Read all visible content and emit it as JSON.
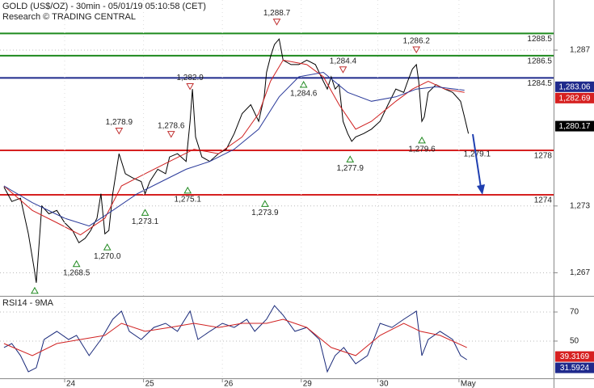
{
  "chart_data": [
    {
      "type": "line",
      "title": "GOLD (US$/OZ) - 30min - 05/01/19 05:10:58 (CET)",
      "subtitle": "Research © TRADING CENTRAL",
      "xlim": [
        0.18,
        7.2
      ],
      "ylim": [
        1265,
        1291.5
      ],
      "yticks": [
        {
          "value": 1287,
          "label": "1,287"
        },
        {
          "value": 1273,
          "label": "1,273"
        },
        {
          "value": 1267,
          "label": "1,267"
        }
      ],
      "grid": true,
      "series": [
        {
          "color": "#000000",
          "width": 1,
          "x": [
            0.23,
            0.33,
            0.44,
            0.54,
            0.61,
            0.64,
            0.67,
            0.71,
            0.8,
            0.9,
            1.0,
            1.1,
            1.18,
            1.26,
            1.33,
            1.41,
            1.46,
            1.51,
            1.56,
            1.61,
            1.69,
            1.77,
            1.87,
            1.97,
            2.02,
            2.08,
            2.18,
            2.28,
            2.33,
            2.43,
            2.54,
            2.59,
            2.62,
            2.66,
            2.74,
            2.84,
            2.95,
            3.05,
            3.15,
            3.25,
            3.36,
            3.46,
            3.53,
            3.56,
            3.61,
            3.66,
            3.72,
            3.77,
            3.87,
            3.97,
            4.07,
            4.18,
            4.28,
            4.33,
            4.38,
            4.43,
            4.48,
            4.53,
            4.59,
            4.64,
            4.69,
            4.79,
            4.89,
            5.0,
            5.1,
            5.2,
            5.3,
            5.35,
            5.41,
            5.46,
            5.49,
            5.53,
            5.56,
            5.61,
            5.71,
            5.82,
            5.92,
            6.02,
            6.07,
            6.12
          ],
          "values": [
            1274.7,
            1273.4,
            1273.7,
            1270.5,
            1267.5,
            1266.1,
            1269.0,
            1273.0,
            1272.3,
            1272.6,
            1271.5,
            1270.8,
            1269.7,
            1270.1,
            1270.8,
            1271.9,
            1274.1,
            1270.5,
            1270.8,
            1274.1,
            1277.7,
            1275.9,
            1275.5,
            1275.2,
            1274.1,
            1275.2,
            1276.3,
            1275.9,
            1277.4,
            1277.7,
            1277.0,
            1280.6,
            1283.5,
            1279.2,
            1277.4,
            1277.0,
            1277.7,
            1278.1,
            1279.5,
            1281.3,
            1282.1,
            1280.6,
            1282.8,
            1285.0,
            1286.4,
            1287.5,
            1288.0,
            1286.1,
            1285.7,
            1285.7,
            1286.1,
            1285.7,
            1284.2,
            1283.5,
            1284.6,
            1283.5,
            1283.9,
            1280.6,
            1279.5,
            1278.8,
            1279.2,
            1279.5,
            1279.9,
            1280.6,
            1282.1,
            1283.5,
            1283.2,
            1284.2,
            1285.3,
            1285.7,
            1284.2,
            1280.6,
            1281.0,
            1283.2,
            1283.9,
            1283.5,
            1283.2,
            1282.4,
            1281.0,
            1279.5
          ]
        },
        {
          "color": "#d02020",
          "width": 1,
          "x": [
            0.23,
            0.59,
            0.9,
            1.2,
            1.51,
            1.72,
            2.02,
            2.33,
            2.64,
            2.95,
            3.25,
            3.46,
            3.61,
            3.77,
            4.07,
            4.28,
            4.48,
            4.69,
            4.89,
            5.2,
            5.41,
            5.61,
            5.82,
            6.07
          ],
          "values": [
            1274.8,
            1272.6,
            1271.5,
            1270.4,
            1271.9,
            1274.8,
            1275.9,
            1277.0,
            1278.1,
            1277.7,
            1279.2,
            1281.3,
            1284.2,
            1286.1,
            1285.7,
            1284.6,
            1282.1,
            1279.9,
            1280.6,
            1282.4,
            1283.5,
            1284.2,
            1283.5,
            1283.2
          ]
        },
        {
          "color": "#2a3a9a",
          "width": 1,
          "x": [
            0.23,
            0.59,
            1.0,
            1.31,
            1.61,
            1.92,
            2.23,
            2.54,
            2.84,
            3.15,
            3.46,
            3.72,
            3.97,
            4.28,
            4.59,
            4.89,
            5.2,
            5.46,
            5.71,
            6.07
          ],
          "values": [
            1274.8,
            1273.3,
            1271.9,
            1271.2,
            1272.6,
            1274.1,
            1275.2,
            1276.3,
            1277.0,
            1278.1,
            1279.9,
            1282.8,
            1284.6,
            1285.0,
            1283.2,
            1282.4,
            1282.8,
            1283.5,
            1283.7,
            1283.4
          ]
        }
      ],
      "levels": [
        {
          "value": 1288.5,
          "label": "1288.5",
          "color": "#1e8a1e"
        },
        {
          "value": 1286.5,
          "label": "1286.5",
          "color": "#1e8a1e"
        },
        {
          "value": 1284.5,
          "label": "1284.5",
          "color": "#1f2a8c"
        },
        {
          "value": 1278,
          "label": "1278",
          "color": "#d62020"
        },
        {
          "value": 1274,
          "label": "1274",
          "color": "#d62020"
        }
      ],
      "annotations": [
        {
          "x": 0.62,
          "value": 1266.1,
          "kind": "low"
        },
        {
          "x": 1.15,
          "value": 1268.5,
          "label": "1,268.5",
          "kind": "low"
        },
        {
          "x": 1.54,
          "value": 1270.0,
          "label": "1,270.0",
          "kind": "low"
        },
        {
          "x": 1.69,
          "value": 1278.9,
          "label": "1,278.9",
          "kind": "high"
        },
        {
          "x": 2.02,
          "value": 1273.1,
          "label": "1,273.1",
          "kind": "low"
        },
        {
          "x": 2.35,
          "value": 1278.6,
          "label": "1,278.6",
          "kind": "high"
        },
        {
          "x": 2.56,
          "value": 1275.1,
          "label": "1,275.1",
          "kind": "low"
        },
        {
          "x": 2.59,
          "value": 1282.9,
          "label": "1,282.9",
          "kind": "high"
        },
        {
          "x": 3.54,
          "value": 1273.9,
          "label": "1,273.9",
          "kind": "low"
        },
        {
          "x": 3.69,
          "value": 1288.7,
          "label": "1,288.7",
          "kind": "high"
        },
        {
          "x": 4.03,
          "value": 1284.6,
          "label": "1,284.6",
          "kind": "low"
        },
        {
          "x": 4.53,
          "value": 1284.4,
          "label": "1,284.4",
          "kind": "high"
        },
        {
          "x": 4.62,
          "value": 1277.9,
          "label": "1,277.9",
          "kind": "low"
        },
        {
          "x": 5.46,
          "value": 1286.2,
          "label": "1,286.2",
          "kind": "high"
        },
        {
          "x": 5.53,
          "value": 1279.6,
          "label": "1,279.6",
          "kind": "low"
        },
        {
          "x": 6.23,
          "value": 1279.1,
          "label": "1,279.1",
          "kind": "text"
        }
      ],
      "price_boxes": [
        {
          "value": 1283.06,
          "label": "1,283.06",
          "color": "#1f2a8c"
        },
        {
          "value": 1282.69,
          "label": "1,282.69",
          "color": "#d62020"
        },
        {
          "value": 1280.17,
          "label": "1,280.17",
          "color": "#000000"
        }
      ]
    },
    {
      "type": "line",
      "title": "RSI14 - 9MA",
      "xlim": [
        0.18,
        7.2
      ],
      "ylim": [
        24.4,
        80
      ],
      "yticks": [
        70,
        50
      ],
      "xticks": [
        {
          "value": 1,
          "label": "24"
        },
        {
          "value": 2,
          "label": "25"
        },
        {
          "value": 3,
          "label": "26"
        },
        {
          "value": 4,
          "label": "29"
        },
        {
          "value": 4.97,
          "label": "30"
        },
        {
          "value": 6,
          "label": "May"
        }
      ],
      "grid": true,
      "series": [
        {
          "color": "#1a2a7a",
          "width": 1,
          "x": [
            0.23,
            0.33,
            0.44,
            0.54,
            0.64,
            0.74,
            0.9,
            1.05,
            1.15,
            1.31,
            1.46,
            1.61,
            1.72,
            1.82,
            1.97,
            2.13,
            2.28,
            2.43,
            2.59,
            2.69,
            2.84,
            3.0,
            3.15,
            3.31,
            3.41,
            3.56,
            3.66,
            3.77,
            3.92,
            4.07,
            4.23,
            4.33,
            4.43,
            4.54,
            4.69,
            4.84,
            5.0,
            5.15,
            5.3,
            5.46,
            5.53,
            5.61,
            5.76,
            5.92,
            6.02,
            6.1
          ],
          "values": [
            45.6,
            48.3,
            40.0,
            28.9,
            31.7,
            51.1,
            56.7,
            51.1,
            53.9,
            40.0,
            51.1,
            65.0,
            70.6,
            56.7,
            51.1,
            59.4,
            62.2,
            56.7,
            70.6,
            51.1,
            56.7,
            62.2,
            59.4,
            65.0,
            56.7,
            65.0,
            74.4,
            67.8,
            56.7,
            59.4,
            51.1,
            28.9,
            40.0,
            45.6,
            34.4,
            40.0,
            62.2,
            59.4,
            65.0,
            70.6,
            40.0,
            51.1,
            56.7,
            51.1,
            40.0,
            37.2
          ]
        },
        {
          "color": "#d02020",
          "width": 1,
          "x": [
            0.23,
            0.59,
            0.9,
            1.2,
            1.51,
            1.72,
            2.02,
            2.33,
            2.64,
            2.95,
            3.25,
            3.56,
            3.77,
            4.07,
            4.38,
            4.69,
            5.0,
            5.3,
            5.51,
            5.76,
            6.1
          ],
          "values": [
            48.3,
            40.0,
            48.3,
            51.1,
            53.9,
            62.2,
            56.7,
            59.4,
            62.2,
            59.4,
            62.2,
            62.2,
            65.0,
            59.4,
            45.6,
            40.0,
            53.9,
            62.2,
            56.7,
            53.9,
            45.6
          ]
        }
      ],
      "price_boxes": [
        {
          "value": 39.3169,
          "label": "39.3169",
          "color": "#d62020"
        },
        {
          "value": 31.5924,
          "label": "31.5924",
          "color": "#1f2a8c"
        }
      ]
    }
  ]
}
